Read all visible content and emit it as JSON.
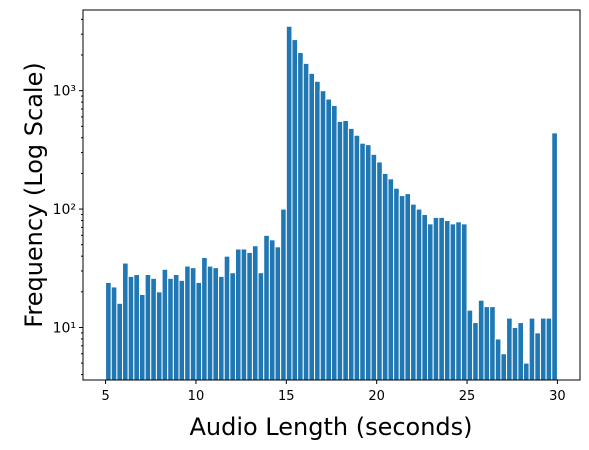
{
  "chart_data": {
    "type": "histogram",
    "xlabel": "Audio Length (seconds)",
    "ylabel": "Frequency (Log Scale)",
    "color": "#1f77b4",
    "edgecolor": "#ffffff",
    "yscale": "log",
    "bins": [
      5,
      5.3125,
      5.625,
      5.9375,
      6.25,
      6.5625,
      6.875,
      7.1875,
      7.5,
      7.8125,
      8.125,
      8.4375,
      8.75,
      9.0625,
      9.375,
      9.6875,
      10,
      10.3125,
      10.625,
      10.9375,
      11.25,
      11.5625,
      11.875,
      12.1875,
      12.5,
      12.8125,
      13.125,
      13.4375,
      13.75,
      14.0625,
      14.375,
      14.6875,
      15,
      15.3125,
      15.625,
      15.9375,
      16.25,
      16.5625,
      16.875,
      17.1875,
      17.5,
      17.8125,
      18.125,
      18.4375,
      18.75,
      19.0625,
      19.375,
      19.6875,
      20,
      20.3125,
      20.625,
      20.9375,
      21.25,
      21.5625,
      21.875,
      22.1875,
      22.5,
      22.8125,
      23.125,
      23.4375,
      23.75,
      24.0625,
      24.375,
      24.6875,
      25,
      25.3125,
      25.625,
      25.9375,
      26.25,
      26.5625,
      26.875,
      27.1875,
      27.5,
      27.8125,
      28.125,
      28.4375,
      28.75,
      29.0625,
      29.375,
      29.6875,
      30
    ],
    "values": [
      24,
      22,
      16,
      35,
      27,
      28,
      19,
      28,
      26,
      20,
      31,
      26,
      28,
      25,
      33,
      32,
      24,
      39,
      33,
      32,
      27,
      40,
      29,
      46,
      46,
      43,
      49,
      29,
      60,
      55,
      48,
      100,
      3500,
      2700,
      2100,
      1700,
      1400,
      1200,
      1000,
      850,
      750,
      550,
      560,
      480,
      420,
      360,
      350,
      290,
      250,
      200,
      180,
      150,
      130,
      135,
      110,
      100,
      90,
      75,
      85,
      85,
      80,
      75,
      78,
      75,
      14,
      11,
      17,
      15,
      15,
      8,
      6,
      12,
      10,
      11,
      5,
      12,
      9,
      12,
      12,
      440
    ],
    "xlim": [
      3.75,
      31.25
    ],
    "xticks": [
      5,
      10,
      15,
      20,
      25,
      30
    ],
    "ylim": [
      3.6,
      4800
    ],
    "yticks": [
      {
        "value": 10,
        "label": "10¹"
      },
      {
        "value": 100,
        "label": "10²"
      },
      {
        "value": 1000,
        "label": "10³"
      }
    ]
  }
}
